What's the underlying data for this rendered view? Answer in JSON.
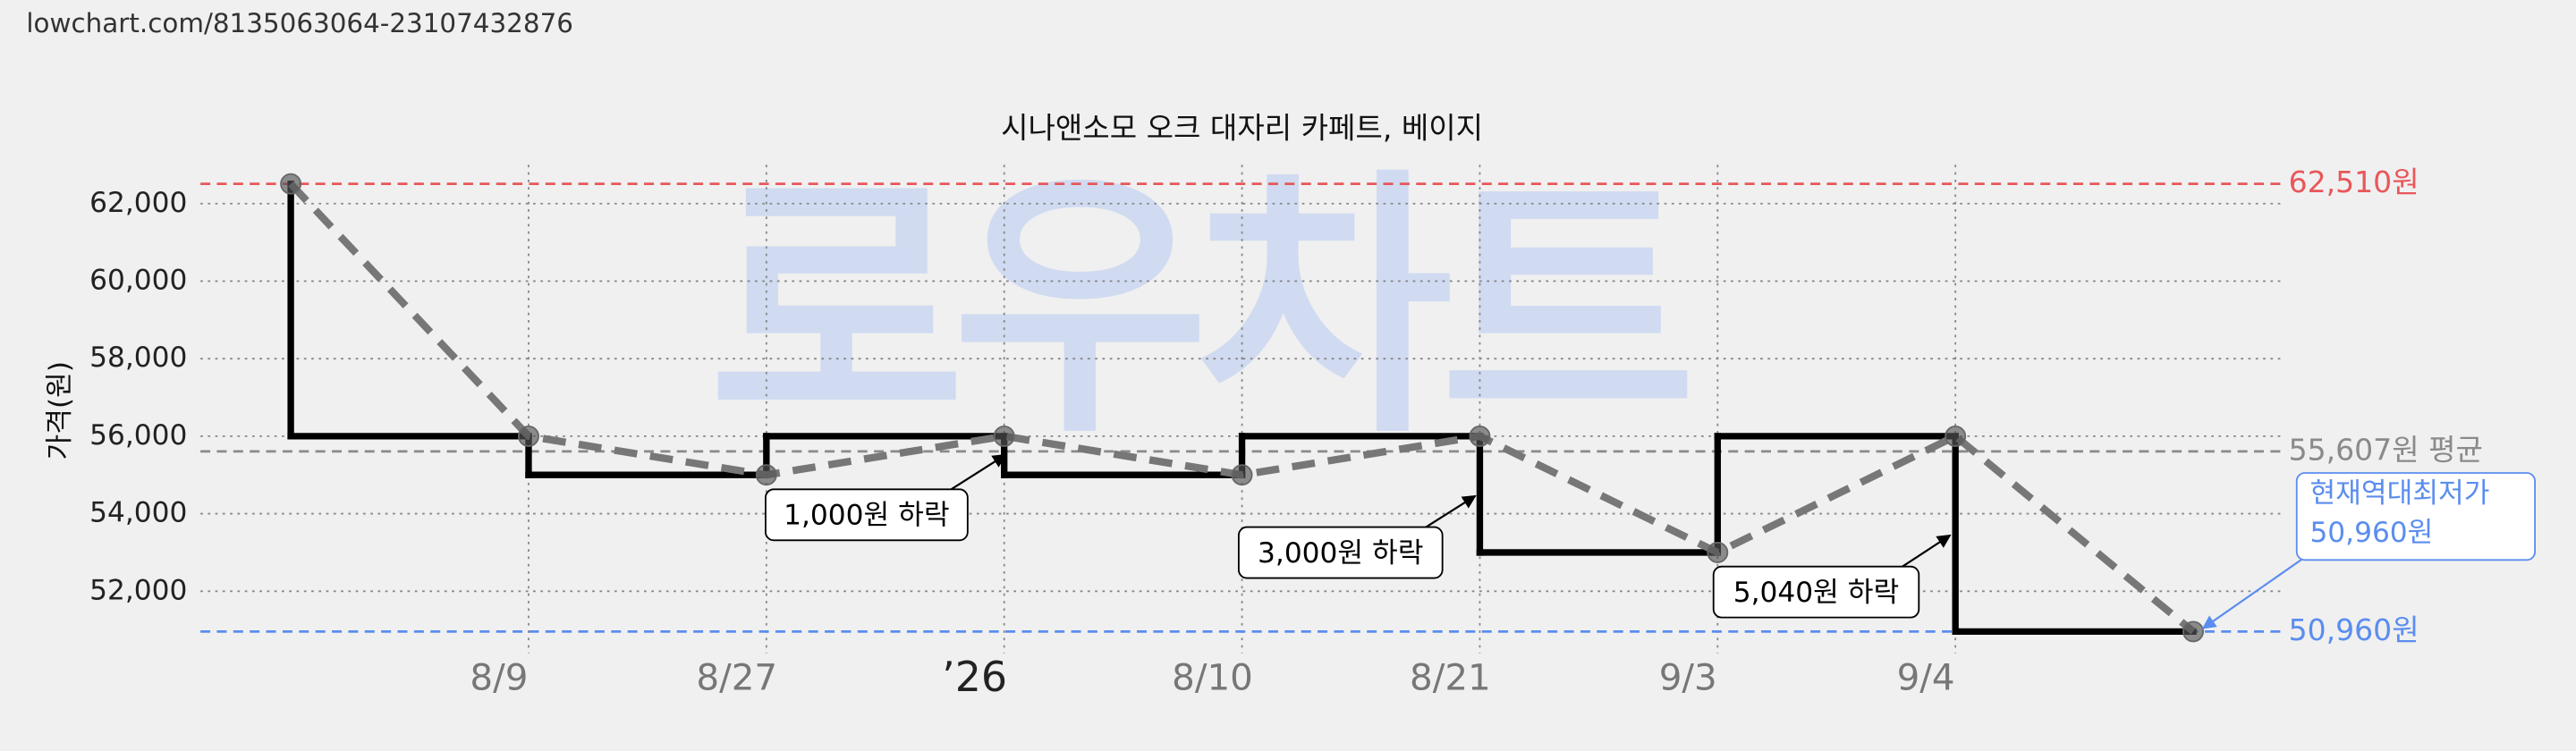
{
  "header": {
    "url": "lowchart.com/8135063064-23107432876"
  },
  "chart_data": {
    "type": "step",
    "title": "시나앤소모 오크 대자리 카페트, 베이지",
    "watermark": "로우차트",
    "y_label": "가격(원)",
    "categories": [
      null,
      "8/9",
      "8/27",
      "’26",
      "8/10",
      "8/21",
      "9/3",
      "9/4",
      null
    ],
    "values": [
      62510,
      56000,
      55000,
      56000,
      55000,
      56000,
      53000,
      56000,
      50960
    ],
    "color": "#000000",
    "trend_color": "#777777",
    "ylim": [
      50400,
      63000
    ],
    "yticks": [
      {
        "value": 52000,
        "label": "52,000"
      },
      {
        "value": 54000,
        "label": "54,000"
      },
      {
        "value": 56000,
        "label": "56,000"
      },
      {
        "value": 58000,
        "label": "58,000"
      },
      {
        "value": 60000,
        "label": "60,000"
      },
      {
        "value": 62000,
        "label": "62,000"
      }
    ],
    "grid": true,
    "reference_lines": [
      {
        "value": 62510,
        "label": "62,510원",
        "color": "#e8575a"
      },
      {
        "value": 55607,
        "label": "55,607원 평균",
        "color": "#8a8a8a"
      },
      {
        "value": 50960,
        "label": "50,960원",
        "color": "#5b8def"
      }
    ],
    "annotations": [
      "1,000원 하락",
      "3,000원 하락",
      "5,040원 하락"
    ],
    "callout": [
      "현재역대최저가",
      "50,960원"
    ]
  }
}
